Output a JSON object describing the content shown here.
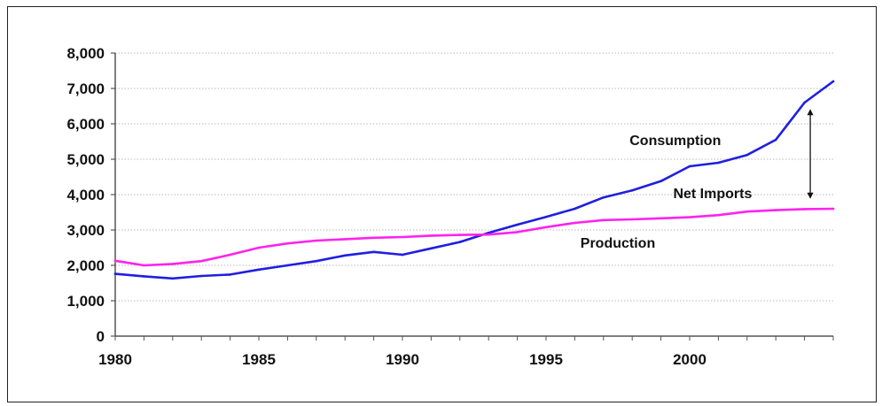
{
  "chart_data": {
    "type": "line",
    "title": "",
    "xlabel": "",
    "ylabel": "",
    "xlim": [
      1980,
      2005
    ],
    "ylim": [
      0,
      8000
    ],
    "x_ticks": [
      1980,
      1985,
      1990,
      1995,
      2000
    ],
    "x_tick_labels": [
      "1980",
      "1985",
      "1990",
      "1995",
      "2000"
    ],
    "y_ticks": [
      0,
      1000,
      2000,
      3000,
      4000,
      5000,
      6000,
      7000,
      8000
    ],
    "y_tick_labels": [
      "0",
      "1,000",
      "2,000",
      "3,000",
      "4,000",
      "5,000",
      "6,000",
      "7,000",
      "8,000"
    ],
    "grid": true,
    "legend": "none",
    "x": [
      1980,
      1981,
      1982,
      1983,
      1984,
      1985,
      1986,
      1987,
      1988,
      1989,
      1990,
      1991,
      1992,
      1993,
      1994,
      1995,
      1996,
      1997,
      1998,
      1999,
      2000,
      2001,
      2002,
      2003,
      2004,
      2005
    ],
    "series": [
      {
        "color": "#1f1fe0",
        "values": [
          1760,
          1690,
          1630,
          1700,
          1740,
          1880,
          2000,
          2120,
          2280,
          2380,
          2300,
          2480,
          2660,
          2920,
          3150,
          3370,
          3600,
          3920,
          4120,
          4380,
          4800,
          4900,
          5120,
          5550,
          6600,
          7200
        ]
      },
      {
        "color": "#ff22ee",
        "values": [
          2130,
          2000,
          2040,
          2120,
          2300,
          2500,
          2620,
          2700,
          2740,
          2780,
          2800,
          2840,
          2860,
          2870,
          2940,
          3080,
          3200,
          3280,
          3300,
          3330,
          3360,
          3420,
          3520,
          3560,
          3590,
          3600
        ]
      }
    ],
    "annotations": [
      {
        "text": "Consumption",
        "x": 1999.5,
        "y": 5400
      },
      {
        "text": "Net Imports",
        "x": 2000.8,
        "y": 3900
      },
      {
        "text": "Production",
        "x": 1997.5,
        "y": 2500
      }
    ],
    "arrow": {
      "x": 2004.2,
      "y_from": 6420,
      "y_to": 3880,
      "color": "#111111"
    }
  }
}
